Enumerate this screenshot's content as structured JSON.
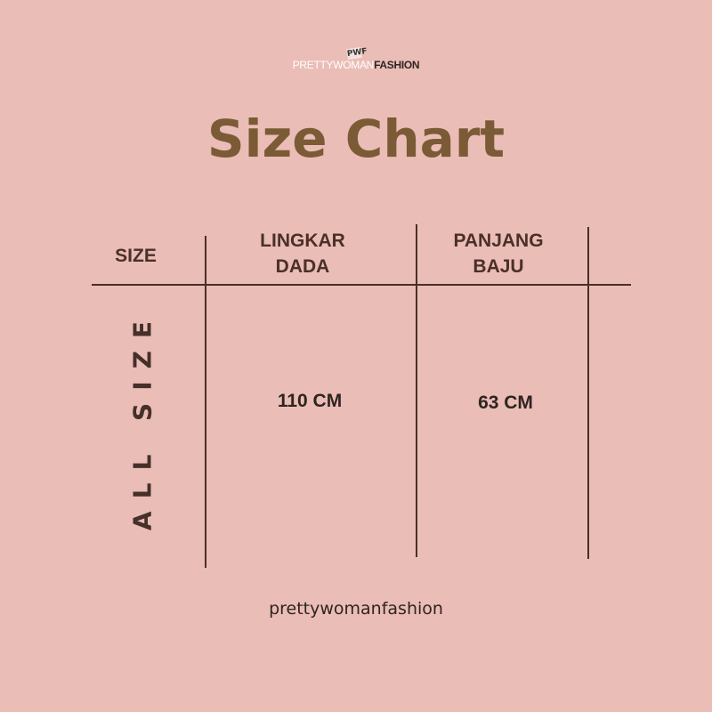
{
  "logo": {
    "mark": "PWF",
    "text_light": "PRETTYWOMAN",
    "text_bold": "FASHION"
  },
  "title": "Size Chart",
  "table": {
    "headers": [
      {
        "line1": "SIZE",
        "line2": ""
      },
      {
        "line1": "LINGKAR",
        "line2": "DADA"
      },
      {
        "line1": "PANJANG",
        "line2": "BAJU"
      }
    ],
    "rows": [
      {
        "size": "ALL SIZE",
        "lingkar_dada": "110 CM",
        "panjang_baju": "63 CM"
      }
    ]
  },
  "footer": "prettywomanfashion",
  "colors": {
    "background": "#ebbdb7",
    "title": "#7b5a36",
    "lines": "#4a3028"
  }
}
